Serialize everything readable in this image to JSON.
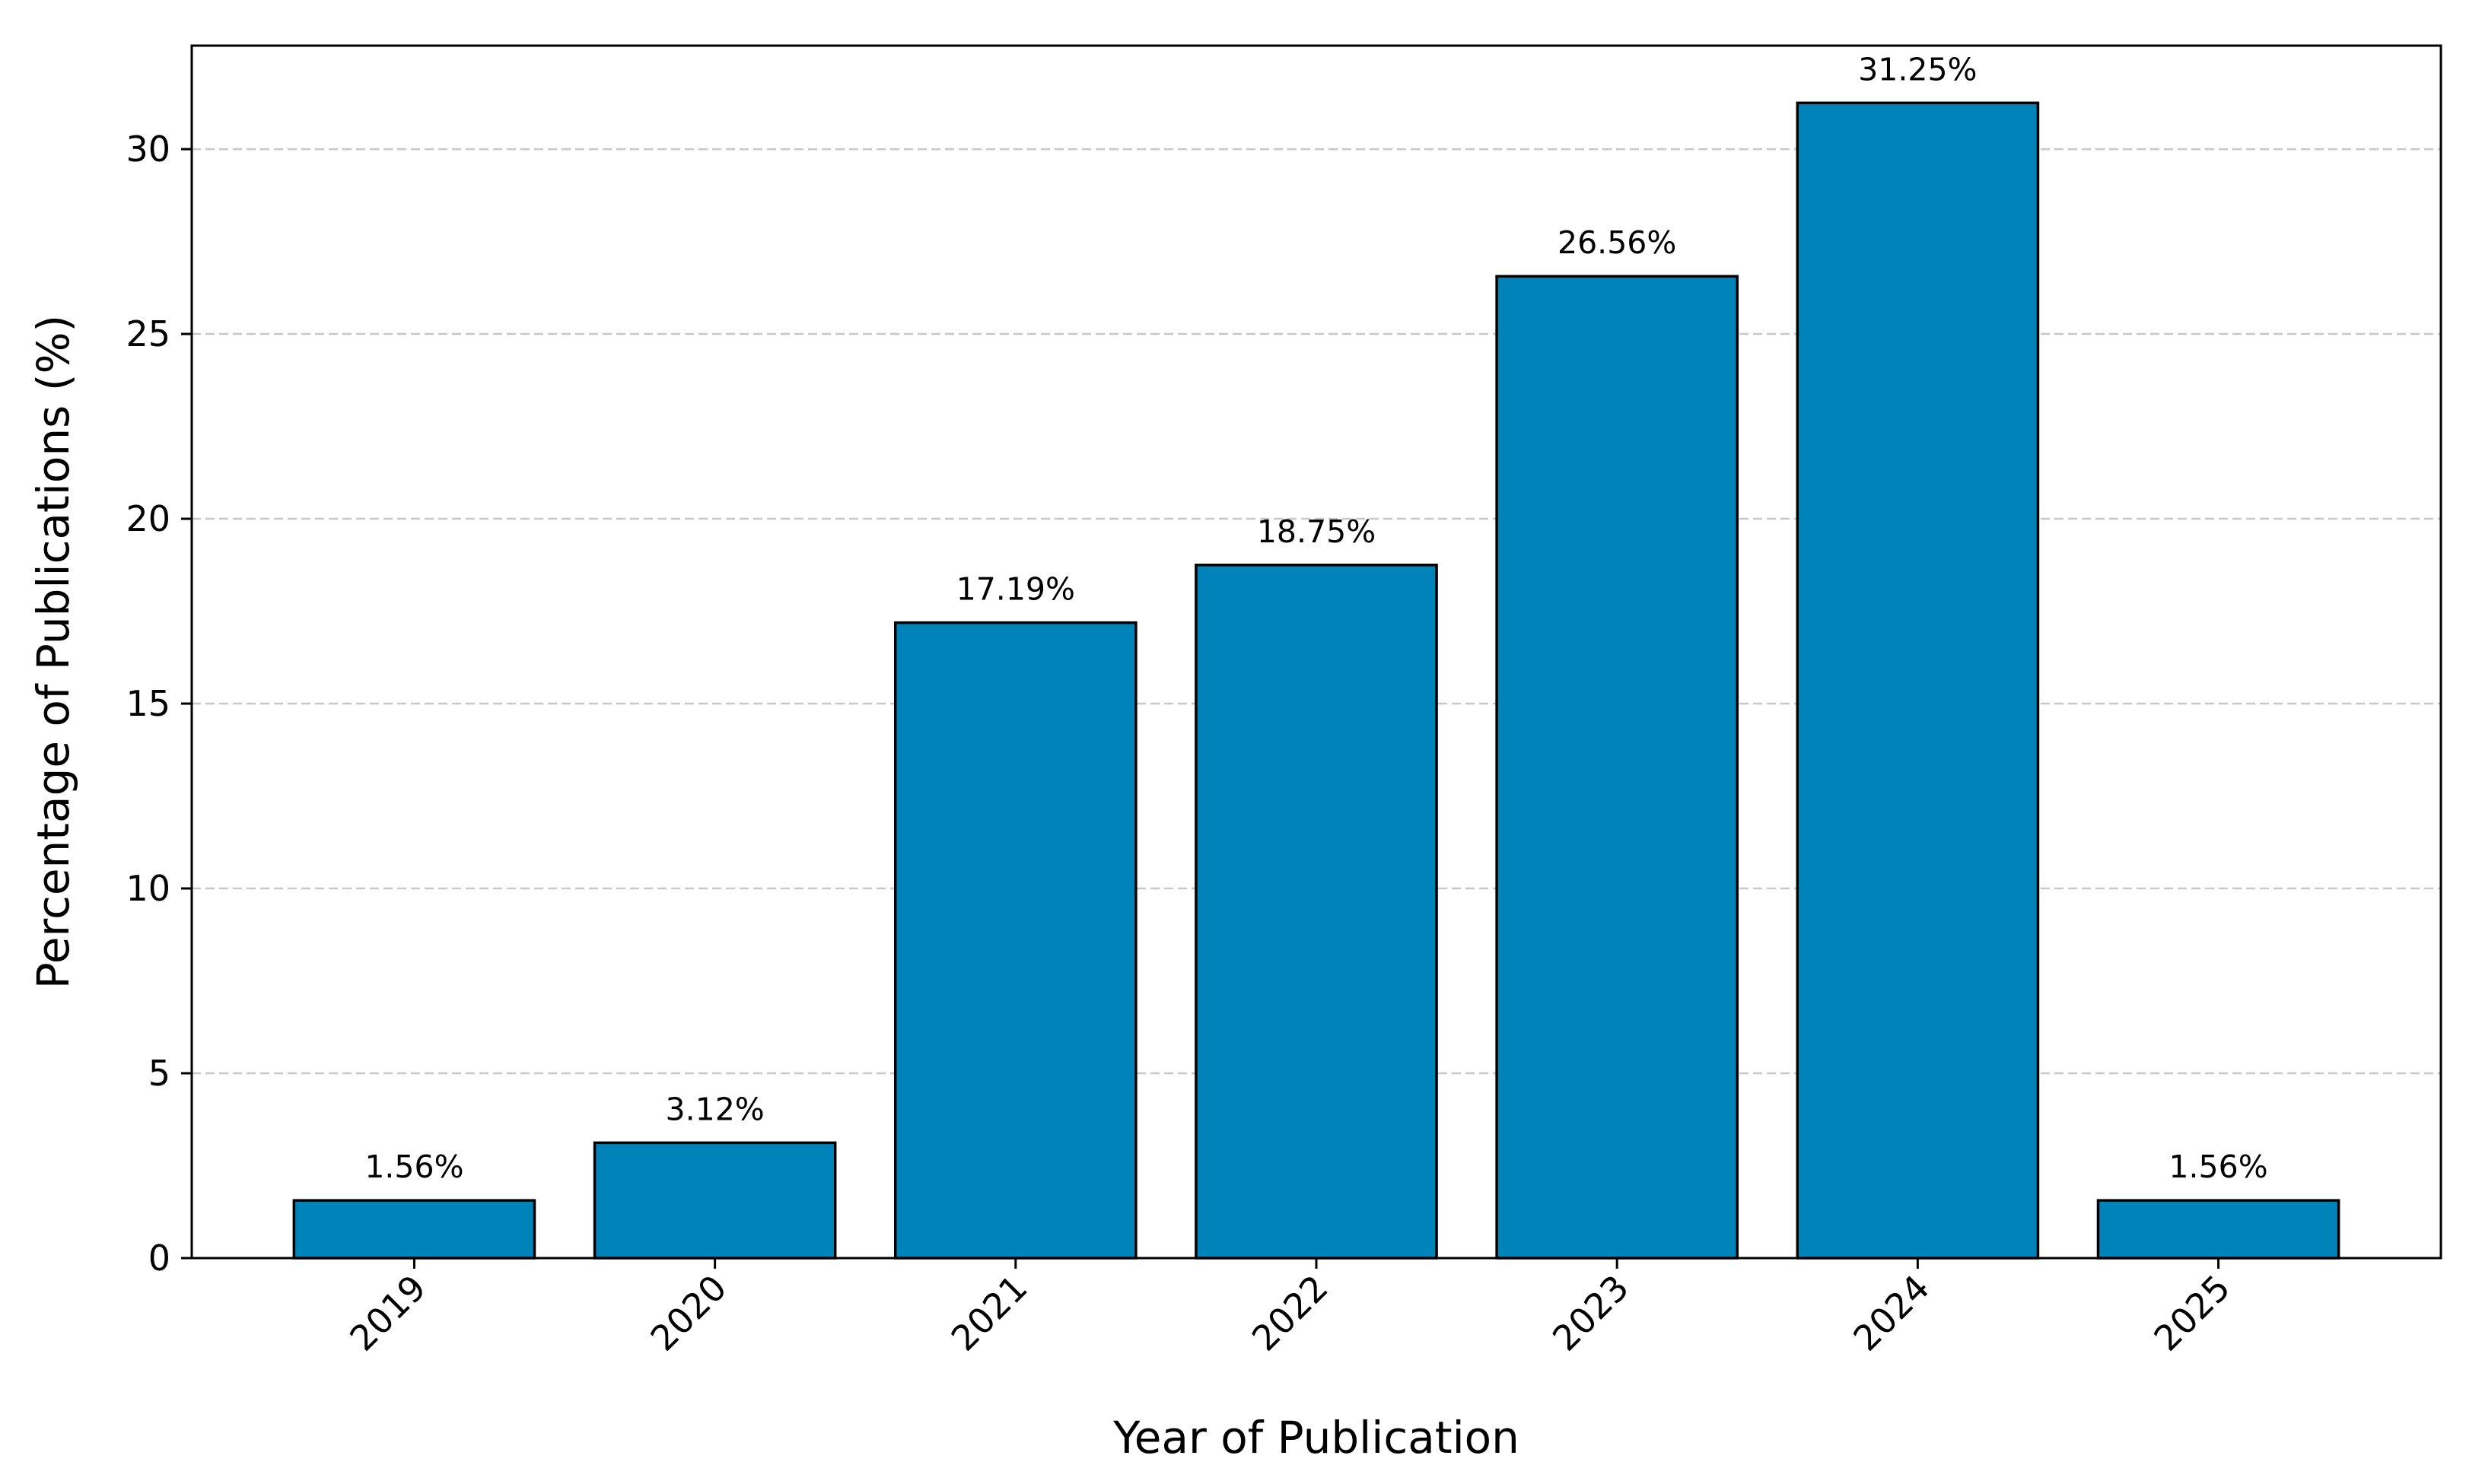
{
  "chart_data": {
    "type": "bar",
    "x_label": "Year of Publication",
    "y_label": "Percentage of Publications (%)",
    "categories": [
      "2019",
      "2020",
      "2021",
      "2022",
      "2023",
      "2024",
      "2025"
    ],
    "values": [
      1.56,
      3.12,
      17.19,
      18.75,
      26.56,
      31.25,
      1.56
    ],
    "value_labels": [
      "1.56%",
      "3.12%",
      "17.19%",
      "18.75%",
      "26.56%",
      "31.25%",
      "1.56%"
    ],
    "color": "#0083b8",
    "edge_color": "#000000",
    "ylim": [
      0,
      32.8
    ],
    "yticks": [
      0,
      5,
      10,
      15,
      20,
      25,
      30
    ],
    "grid": true
  }
}
